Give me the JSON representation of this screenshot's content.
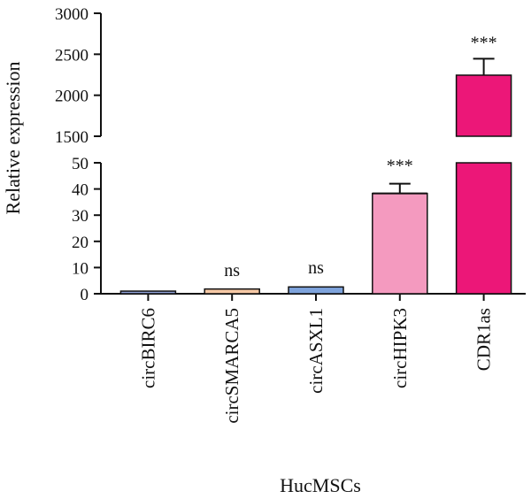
{
  "chart_data": {
    "type": "bar",
    "xlabel": "HucMSCs",
    "ylabel": "Relative expression",
    "categories": [
      "circBIRC6",
      "circSMARCA5",
      "circASXL1",
      "circHIPK3",
      "CDR1as"
    ],
    "values": [
      1,
      1.8,
      2.6,
      38.3,
      2245
    ],
    "errors": [
      0.2,
      0.3,
      0.4,
      3.7,
      200
    ],
    "significance": [
      "",
      "ns",
      "ns",
      "***",
      "***"
    ],
    "colors": [
      "#8ea0d6",
      "#f6c9a6",
      "#7ea3dc",
      "#f49abf",
      "#ec1778"
    ],
    "y_axis_broken": true,
    "ylim_lower": [
      0,
      50
    ],
    "ylim_upper": [
      1500,
      3000
    ],
    "yticks_lower": [
      "0",
      "10",
      "20",
      "30",
      "40",
      "50"
    ],
    "yticks_upper": [
      "1500",
      "2000",
      "2500",
      "3000"
    ],
    "grid": false
  }
}
